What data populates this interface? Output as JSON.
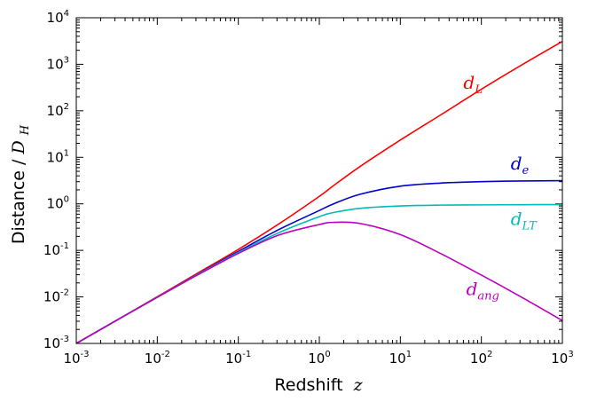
{
  "chart_data": {
    "type": "line",
    "title": "",
    "xscale": "log",
    "yscale": "log",
    "xlim": [
      0.001,
      1000
    ],
    "ylim": [
      0.001,
      10000
    ],
    "xlabel": {
      "text": "Redshift",
      "var": "z"
    },
    "ylabel": {
      "text": "Distance / ",
      "var": "D",
      "sub": "H"
    },
    "x_ticks": [
      {
        "value": 0.001,
        "base": "10",
        "exp": "-3"
      },
      {
        "value": 0.01,
        "base": "10",
        "exp": "-2"
      },
      {
        "value": 0.1,
        "base": "10",
        "exp": "-1"
      },
      {
        "value": 1,
        "base": "10",
        "exp": "0"
      },
      {
        "value": 10,
        "base": "10",
        "exp": "1"
      },
      {
        "value": 100,
        "base": "10",
        "exp": "2"
      },
      {
        "value": 1000,
        "base": "10",
        "exp": "3"
      }
    ],
    "y_ticks": [
      {
        "value": 0.001,
        "base": "10",
        "exp": "-3"
      },
      {
        "value": 0.01,
        "base": "10",
        "exp": "-2"
      },
      {
        "value": 0.1,
        "base": "10",
        "exp": "-1"
      },
      {
        "value": 1,
        "base": "10",
        "exp": "0"
      },
      {
        "value": 10,
        "base": "10",
        "exp": "1"
      },
      {
        "value": 100,
        "base": "10",
        "exp": "2"
      },
      {
        "value": 1000,
        "base": "10",
        "exp": "3"
      },
      {
        "value": 10000,
        "base": "10",
        "exp": "4"
      }
    ],
    "x": [
      0.001,
      0.00316,
      0.01,
      0.0316,
      0.1,
      0.316,
      1,
      1.5,
      3.16,
      10,
      31.6,
      100,
      316,
      1000
    ],
    "series": [
      {
        "key": "d_L",
        "name": "d",
        "sub": "L",
        "color": "#ff0000",
        "label_at": [
          60,
          300
        ],
        "values": [
          0.001,
          0.00316,
          0.0101,
          0.0325,
          0.105,
          0.37,
          1.45,
          2.47,
          6.3,
          23.5,
          82,
          290,
          970,
          3100
        ]
      },
      {
        "key": "d_e",
        "name": "d",
        "sub": "e",
        "color": "#0000cc",
        "label_at": [
          230,
          5.5
        ],
        "values": [
          0.001,
          0.00316,
          0.0099,
          0.0308,
          0.095,
          0.28,
          0.72,
          1.0,
          1.6,
          2.4,
          2.8,
          3.0,
          3.1,
          3.15
        ]
      },
      {
        "key": "d_LT",
        "name": "d",
        "sub": "LT",
        "color": "#00bbbb",
        "label_at": [
          230,
          0.35
        ],
        "values": [
          0.001,
          0.00316,
          0.0099,
          0.0305,
          0.09,
          0.24,
          0.53,
          0.65,
          0.8,
          0.9,
          0.94,
          0.95,
          0.96,
          0.965
        ]
      },
      {
        "key": "d_ang",
        "name": "d",
        "sub": "ang",
        "color": "#bb00bb",
        "label_at": [
          65,
          0.011
        ],
        "values": [
          0.001,
          0.00315,
          0.0098,
          0.0298,
          0.086,
          0.213,
          0.36,
          0.4,
          0.38,
          0.218,
          0.085,
          0.0295,
          0.0098,
          0.0031
        ]
      }
    ]
  }
}
